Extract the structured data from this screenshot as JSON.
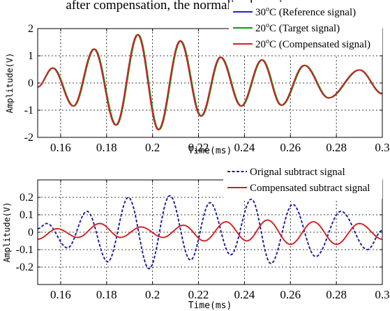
{
  "header_text": "after compensation, the normalized maximum cr",
  "chart_data": [
    {
      "type": "line",
      "xlabel": "Time(ms)",
      "ylabel": "Amplitude(V)",
      "xlim": [
        0.15,
        0.3
      ],
      "ylim": [
        -2,
        2
      ],
      "xticks": [
        0.16,
        0.18,
        0.2,
        0.22,
        0.24,
        0.26,
        0.28,
        0.3
      ],
      "xtick_labels": [
        "0.16",
        "0.18",
        "0.2",
        "0.22",
        "0.24",
        "0.26",
        "0.28",
        "0.3"
      ],
      "yticks": [
        -2,
        -1,
        0,
        1,
        2
      ],
      "ytick_labels": [
        "-2",
        "-1",
        "0",
        "1",
        "2"
      ],
      "grid": true,
      "legend_position": "top-right",
      "legend_labels": [
        {
          "base": "30",
          "sup": "o",
          "rest": "C (Reference signal)"
        },
        {
          "base": "20",
          "sup": "o",
          "rest": "C (Target signal)"
        },
        {
          "base": "20",
          "sup": "o",
          "rest": "C (Compensated signal)"
        }
      ],
      "series": [
        {
          "name": "30°C (Reference signal)",
          "color": "#1f1fd6",
          "dash": "solid",
          "x": [
            0.15,
            0.1565,
            0.1655,
            0.1745,
            0.184,
            0.1935,
            0.2025,
            0.212,
            0.221,
            0.2295,
            0.2385,
            0.2475,
            0.256,
            0.266,
            0.2765,
            0.29,
            0.3
          ],
          "y": [
            -0.15,
            0.55,
            -0.85,
            1.25,
            -1.55,
            1.78,
            -1.72,
            1.55,
            -1.22,
            0.95,
            -0.85,
            0.85,
            -0.82,
            0.65,
            -0.55,
            0.48,
            -0.4
          ]
        },
        {
          "name": "20°C (Target signal)",
          "color": "#139613",
          "dash": "solid",
          "x": [
            0.15,
            0.1568,
            0.1658,
            0.1748,
            0.1843,
            0.1938,
            0.2028,
            0.2123,
            0.2213,
            0.2298,
            0.2388,
            0.2478,
            0.2563,
            0.2663,
            0.2768,
            0.2903,
            0.3
          ],
          "y": [
            -0.15,
            0.55,
            -0.85,
            1.25,
            -1.55,
            1.78,
            -1.72,
            1.55,
            -1.22,
            0.95,
            -0.85,
            0.85,
            -0.82,
            0.65,
            -0.55,
            0.48,
            -0.38
          ]
        },
        {
          "name": "20°C (Compensated signal)",
          "color": "#d42020",
          "dash": "solid",
          "x": [
            0.15,
            0.1565,
            0.1655,
            0.1745,
            0.184,
            0.1935,
            0.2025,
            0.212,
            0.221,
            0.2295,
            0.2385,
            0.2475,
            0.256,
            0.266,
            0.2765,
            0.29,
            0.3
          ],
          "y": [
            -0.15,
            0.55,
            -0.85,
            1.25,
            -1.55,
            1.78,
            -1.72,
            1.55,
            -1.22,
            0.95,
            -0.85,
            0.85,
            -0.82,
            0.65,
            -0.55,
            0.48,
            -0.4
          ]
        }
      ]
    },
    {
      "type": "line",
      "xlabel": "Time(ms)",
      "ylabel": "Amplitude(V)",
      "xlim": [
        0.15,
        0.3
      ],
      "ylim": [
        -0.3,
        0.3
      ],
      "xticks": [
        0.16,
        0.18,
        0.2,
        0.22,
        0.24,
        0.26,
        0.28,
        0.3
      ],
      "xtick_labels": [
        "0.16",
        "0.18",
        "0.2",
        "0.22",
        "0.24",
        "0.26",
        "0.28",
        "0.3"
      ],
      "yticks": [
        -0.2,
        -0.1,
        0,
        0.1,
        0.2
      ],
      "ytick_labels": [
        "-0.2",
        "-0.1",
        "0",
        "0.1",
        "0.2"
      ],
      "grid": true,
      "legend_position": "top-right",
      "legend_labels": [
        {
          "base": "Orignal subtract signal",
          "sup": "",
          "rest": ""
        },
        {
          "base": "Compensated subtract signal",
          "sup": "",
          "rest": ""
        }
      ],
      "series": [
        {
          "name": "Orignal subtract signal",
          "color": "#1a1a9c",
          "dash": "dashed",
          "x": [
            0.15,
            0.154,
            0.163,
            0.1715,
            0.1805,
            0.1895,
            0.1985,
            0.2075,
            0.2165,
            0.225,
            0.234,
            0.243,
            0.2515,
            0.261,
            0.271,
            0.282,
            0.2935,
            0.3
          ],
          "y": [
            0.02,
            0.05,
            -0.09,
            0.12,
            -0.17,
            0.2,
            -0.21,
            0.21,
            -0.16,
            0.17,
            -0.13,
            0.19,
            -0.18,
            0.16,
            -0.14,
            0.12,
            -0.1,
            0.01
          ]
        },
        {
          "name": "Compensated subtract signal",
          "color": "#d42020",
          "dash": "solid",
          "x": [
            0.15,
            0.1585,
            0.1675,
            0.177,
            0.186,
            0.195,
            0.2045,
            0.2135,
            0.2225,
            0.232,
            0.241,
            0.25,
            0.26,
            0.27,
            0.28,
            0.29,
            0.3
          ],
          "y": [
            -0.04,
            0.02,
            -0.03,
            0.05,
            -0.03,
            0.03,
            -0.03,
            0.04,
            -0.05,
            0.06,
            -0.05,
            0.07,
            -0.07,
            0.06,
            -0.07,
            0.05,
            -0.04
          ]
        }
      ]
    }
  ]
}
